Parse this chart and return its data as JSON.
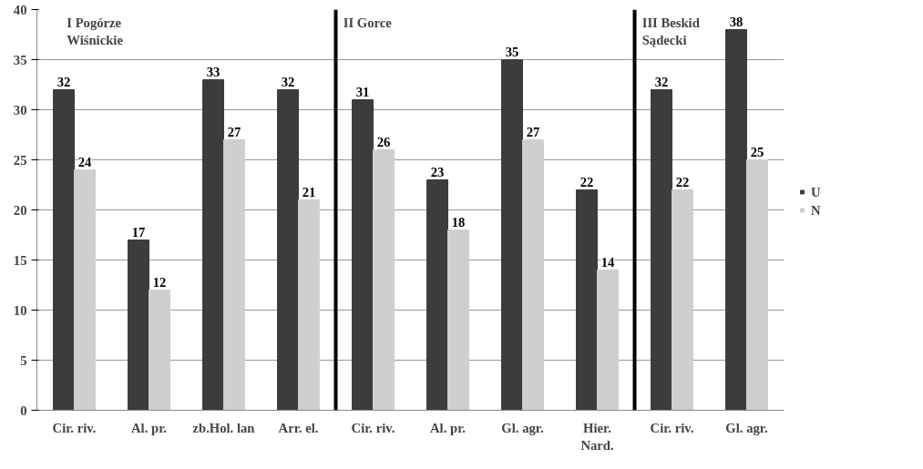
{
  "chart_data": {
    "type": "bar",
    "categories": [
      "Cir. riv.",
      "Al. pr.",
      "zb.Hol. lan",
      "Arr. el.",
      "Cir. riv.",
      "Al. pr.",
      "Gl. agr.",
      "Hier.\nNard.",
      "Cir. riv.",
      "Gl. agr."
    ],
    "series": [
      {
        "name": "U",
        "color": "#3c3c3c",
        "values": [
          32,
          17,
          33,
          32,
          31,
          23,
          35,
          22,
          32,
          38
        ]
      },
      {
        "name": "N",
        "color": "#cfcfcf",
        "values": [
          24,
          12,
          27,
          21,
          26,
          18,
          27,
          14,
          22,
          25
        ]
      }
    ],
    "ylim": [
      0,
      40
    ],
    "yticks": [
      0,
      5,
      10,
      15,
      20,
      25,
      30,
      35,
      40
    ],
    "grid": "y",
    "legend": "right",
    "data_labels": true,
    "annotations": [
      "I Pogórze\nWiśnickie",
      "II Gorce",
      "III Beskid\nSądecki"
    ]
  }
}
